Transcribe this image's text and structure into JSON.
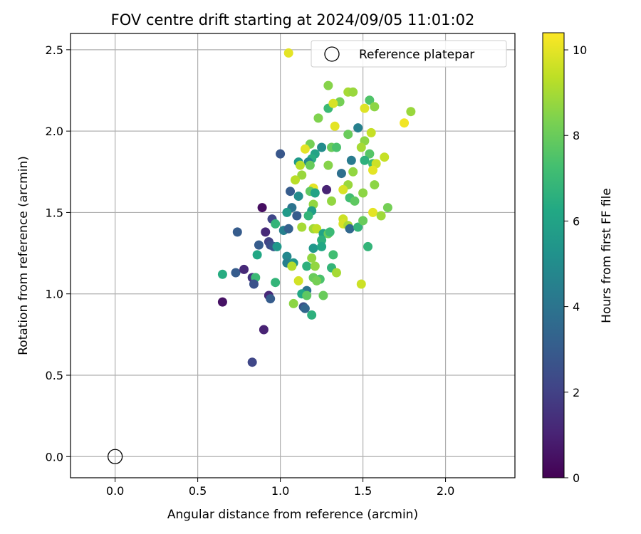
{
  "chart_data": {
    "type": "scatter",
    "title": "FOV centre drift starting at 2024/09/05 11:01:02",
    "xlabel": "Angular distance from reference (arcmin)",
    "ylabel": "Rotation from reference (arcmin)",
    "xlim": [
      -0.27,
      2.42
    ],
    "ylim": [
      -0.13,
      2.6
    ],
    "xticks": [
      "0.0",
      "0.5",
      "1.0",
      "1.5",
      "2.0"
    ],
    "yticks": [
      "0.0",
      "0.5",
      "1.0",
      "1.5",
      "2.0",
      "2.5"
    ],
    "grid": true,
    "legend": {
      "placement": "top-right",
      "entries": [
        "Reference platepar"
      ]
    },
    "reference_point": {
      "x": 0.0,
      "y": 0.0,
      "marker": "open-circle"
    },
    "colorbar": {
      "label": "Hours from first FF file",
      "range": [
        0,
        10.4
      ],
      "ticks": [
        "0",
        "2",
        "4",
        "6",
        "8",
        "10"
      ],
      "colormap": "viridis"
    },
    "points": [
      [
        1.05,
        2.48,
        10.0
      ],
      [
        1.29,
        2.28,
        8.5
      ],
      [
        1.41,
        2.24,
        9.0
      ],
      [
        1.44,
        2.24,
        8.8
      ],
      [
        1.36,
        2.18,
        8.2
      ],
      [
        1.29,
        2.14,
        7.0
      ],
      [
        1.32,
        2.17,
        9.8
      ],
      [
        1.54,
        2.19,
        7.5
      ],
      [
        1.57,
        2.15,
        8.6
      ],
      [
        1.51,
        2.14,
        9.9
      ],
      [
        1.79,
        2.12,
        8.8
      ],
      [
        1.23,
        2.08,
        8.4
      ],
      [
        1.33,
        2.03,
        10.0
      ],
      [
        1.47,
        2.02,
        4.5
      ],
      [
        1.75,
        2.05,
        10.2
      ],
      [
        1.41,
        1.98,
        8.0
      ],
      [
        1.55,
        1.99,
        9.5
      ],
      [
        1.51,
        1.94,
        8.6
      ],
      [
        1.49,
        1.9,
        9.0
      ],
      [
        1.18,
        1.92,
        8.2
      ],
      [
        1.25,
        1.9,
        5.0
      ],
      [
        1.31,
        1.9,
        8.0
      ],
      [
        1.34,
        1.9,
        7.4
      ],
      [
        1.15,
        1.89,
        10.0
      ],
      [
        1.0,
        1.86,
        2.8
      ],
      [
        1.21,
        1.86,
        6.0
      ],
      [
        1.54,
        1.86,
        7.6
      ],
      [
        1.19,
        1.83,
        6.4
      ],
      [
        1.11,
        1.81,
        5.6
      ],
      [
        1.17,
        1.81,
        4.8
      ],
      [
        1.43,
        1.82,
        4.3
      ],
      [
        1.51,
        1.82,
        6.6
      ],
      [
        1.56,
        1.8,
        7.0
      ],
      [
        1.58,
        1.8,
        9.6
      ],
      [
        1.63,
        1.84,
        9.5
      ],
      [
        1.12,
        1.79,
        9.3
      ],
      [
        1.18,
        1.79,
        8.0
      ],
      [
        1.29,
        1.79,
        8.5
      ],
      [
        1.37,
        1.74,
        3.8
      ],
      [
        1.44,
        1.75,
        8.7
      ],
      [
        1.56,
        1.76,
        10.0
      ],
      [
        1.13,
        1.73,
        8.8
      ],
      [
        1.09,
        1.7,
        9.3
      ],
      [
        1.41,
        1.67,
        8.8
      ],
      [
        1.57,
        1.67,
        8.6
      ],
      [
        1.2,
        1.65,
        10.0
      ],
      [
        1.06,
        1.63,
        3.0
      ],
      [
        1.18,
        1.63,
        7.8
      ],
      [
        1.21,
        1.62,
        6.0
      ],
      [
        1.28,
        1.64,
        1.0
      ],
      [
        1.38,
        1.64,
        9.8
      ],
      [
        1.5,
        1.62,
        8.6
      ],
      [
        1.11,
        1.6,
        5.0
      ],
      [
        1.42,
        1.59,
        7.2
      ],
      [
        1.45,
        1.57,
        7.8
      ],
      [
        1.31,
        1.57,
        8.7
      ],
      [
        1.2,
        1.55,
        8.7
      ],
      [
        0.89,
        1.53,
        0.4
      ],
      [
        1.07,
        1.53,
        4.0
      ],
      [
        1.19,
        1.51,
        5.8
      ],
      [
        1.65,
        1.53,
        8.2
      ],
      [
        1.04,
        1.5,
        5.6
      ],
      [
        1.17,
        1.48,
        6.8
      ],
      [
        1.1,
        1.48,
        3.0
      ],
      [
        1.56,
        1.5,
        10.0
      ],
      [
        1.61,
        1.48,
        8.9
      ],
      [
        0.95,
        1.46,
        2.2
      ],
      [
        1.38,
        1.46,
        9.6
      ],
      [
        1.38,
        1.43,
        9.8
      ],
      [
        1.41,
        1.42,
        9.0
      ],
      [
        1.42,
        1.4,
        3.5
      ],
      [
        1.47,
        1.41,
        6.8
      ],
      [
        1.5,
        1.45,
        8.0
      ],
      [
        0.97,
        1.43,
        6.8
      ],
      [
        1.13,
        1.41,
        9.0
      ],
      [
        1.2,
        1.4,
        8.9
      ],
      [
        1.22,
        1.4,
        9.4
      ],
      [
        1.02,
        1.39,
        4.5
      ],
      [
        1.05,
        1.4,
        3.2
      ],
      [
        1.26,
        1.37,
        6.0
      ],
      [
        1.29,
        1.37,
        8.0
      ],
      [
        1.3,
        1.38,
        7.0
      ],
      [
        0.74,
        1.38,
        3.0
      ],
      [
        0.91,
        1.38,
        1.2
      ],
      [
        1.25,
        1.33,
        6.6
      ],
      [
        0.93,
        1.32,
        2.0
      ],
      [
        0.94,
        1.3,
        2.4
      ],
      [
        0.87,
        1.3,
        3.0
      ],
      [
        0.96,
        1.29,
        2.8
      ],
      [
        0.98,
        1.29,
        5.5
      ],
      [
        1.2,
        1.28,
        5.5
      ],
      [
        1.25,
        1.29,
        6.2
      ],
      [
        1.53,
        1.29,
        6.8
      ],
      [
        0.86,
        1.24,
        6.2
      ],
      [
        1.04,
        1.23,
        4.8
      ],
      [
        1.19,
        1.22,
        8.7
      ],
      [
        1.32,
        1.24,
        7.2
      ],
      [
        1.04,
        1.19,
        4.5
      ],
      [
        1.08,
        1.19,
        5.4
      ],
      [
        1.07,
        1.17,
        9.2
      ],
      [
        1.16,
        1.17,
        6.6
      ],
      [
        1.21,
        1.17,
        8.7
      ],
      [
        1.31,
        1.16,
        6.8
      ],
      [
        0.65,
        1.12,
        6.4
      ],
      [
        0.73,
        1.13,
        3.0
      ],
      [
        0.78,
        1.15,
        1.2
      ],
      [
        1.34,
        1.13,
        9.0
      ],
      [
        1.11,
        1.08,
        9.7
      ],
      [
        0.83,
        1.1,
        1.6
      ],
      [
        0.85,
        1.1,
        7.0
      ],
      [
        1.2,
        1.1,
        8.0
      ],
      [
        1.24,
        1.09,
        7.4
      ],
      [
        1.22,
        1.08,
        8.2
      ],
      [
        0.84,
        1.06,
        2.6
      ],
      [
        0.97,
        1.07,
        6.8
      ],
      [
        1.49,
        1.06,
        9.6
      ],
      [
        1.16,
        1.02,
        4.0
      ],
      [
        1.13,
        1.0,
        6.2
      ],
      [
        1.16,
        0.99,
        7.8
      ],
      [
        1.26,
        0.99,
        8.0
      ],
      [
        0.93,
        0.99,
        1.2
      ],
      [
        0.94,
        0.97,
        3.0
      ],
      [
        0.65,
        0.95,
        0.5
      ],
      [
        1.08,
        0.94,
        8.6
      ],
      [
        1.14,
        0.92,
        2.6
      ],
      [
        1.15,
        0.91,
        3.4
      ],
      [
        1.19,
        0.87,
        6.6
      ],
      [
        0.9,
        0.78,
        1.0
      ],
      [
        0.83,
        0.58,
        2.2
      ]
    ]
  }
}
